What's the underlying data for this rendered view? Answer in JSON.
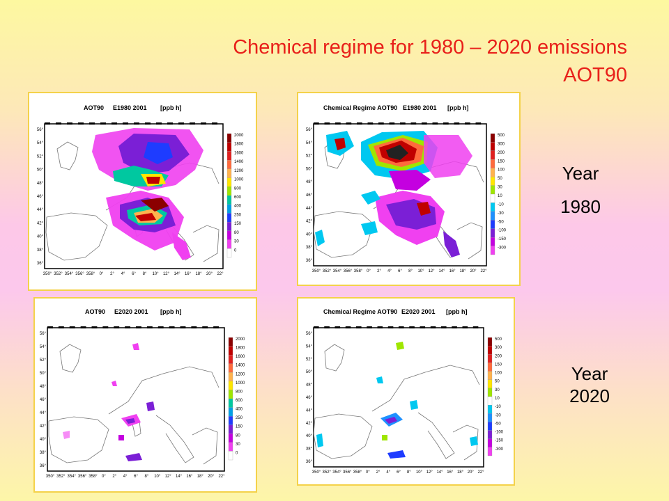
{
  "slide": {
    "title_line1": "Chemical regime for 1980 – 2020 emissions",
    "title_line2": "AOT90",
    "year_a_label": "Year",
    "year_a_value": "1980",
    "year_b_label": "Year",
    "year_b_value": "2020"
  },
  "maps": [
    {
      "title_left": "AOT90",
      "title_mid": "E1980 2001",
      "title_right": "[ppb h]",
      "scale": [
        "2000",
        "1800",
        "1600",
        "1400",
        "1200",
        "1000",
        "800",
        "600",
        "400",
        "250",
        "150",
        "80",
        "30",
        "0"
      ],
      "scale_colors": [
        "#8b0000",
        "#c00000",
        "#e02020",
        "#ff6a3d",
        "#ffb24d",
        "#ffe600",
        "#9fe600",
        "#00c8a0",
        "#00a0e6",
        "#1e3cff",
        "#7b1fd6",
        "#c400e0",
        "#f040f0",
        "#ffffff"
      ]
    },
    {
      "title_left": "Chemical Regime AOT90",
      "title_mid": "E1980 2001",
      "title_right": "[ppb h]",
      "scale": [
        "500",
        "300",
        "200",
        "150",
        "100",
        "50",
        "30",
        "10",
        "-10",
        "-30",
        "-50",
        "-100",
        "-150",
        "-300"
      ],
      "scale_colors": [
        "#8b0000",
        "#c00000",
        "#e02020",
        "#ff6a3d",
        "#ffb24d",
        "#ffe600",
        "#9fe600",
        "#ffffff",
        "#00c8f0",
        "#1e90ff",
        "#1e3cff",
        "#7b1fd6",
        "#c400e0",
        "#f040f0"
      ]
    },
    {
      "title_left": "AOT90",
      "title_mid": "E2020 2001",
      "title_right": "[ppb h]",
      "scale": [
        "2000",
        "1800",
        "1600",
        "1400",
        "1200",
        "1000",
        "800",
        "600",
        "400",
        "250",
        "150",
        "80",
        "30",
        "0"
      ],
      "scale_colors": [
        "#8b0000",
        "#c00000",
        "#e02020",
        "#ff6a3d",
        "#ffb24d",
        "#ffe600",
        "#9fe600",
        "#00c8a0",
        "#00a0e6",
        "#1e3cff",
        "#7b1fd6",
        "#c400e0",
        "#f040f0",
        "#ffffff"
      ]
    },
    {
      "title_left": "Chemical Regime AOT90",
      "title_mid": "E2020 2001",
      "title_right": "[ppb h]",
      "scale": [
        "500",
        "300",
        "200",
        "150",
        "100",
        "50",
        "30",
        "10",
        "-10",
        "-30",
        "-50",
        "-100",
        "-150",
        "-300"
      ],
      "scale_colors": [
        "#8b0000",
        "#c00000",
        "#e02020",
        "#ff6a3d",
        "#ffb24d",
        "#ffe600",
        "#9fe600",
        "#ffffff",
        "#00c8f0",
        "#1e90ff",
        "#1e3cff",
        "#7b1fd6",
        "#c400e0",
        "#f040f0"
      ]
    }
  ],
  "lat_ticks": [
    "56°",
    "54°",
    "52°",
    "50°",
    "48°",
    "46°",
    "44°",
    "42°",
    "40°",
    "38°",
    "36°"
  ],
  "lon_ticks": [
    "350°",
    "352°",
    "354°",
    "356°",
    "358°",
    "0°",
    "2°",
    "4°",
    "6°",
    "8°",
    "10°",
    "12°",
    "14°",
    "16°",
    "18°",
    "20°",
    "22°"
  ]
}
